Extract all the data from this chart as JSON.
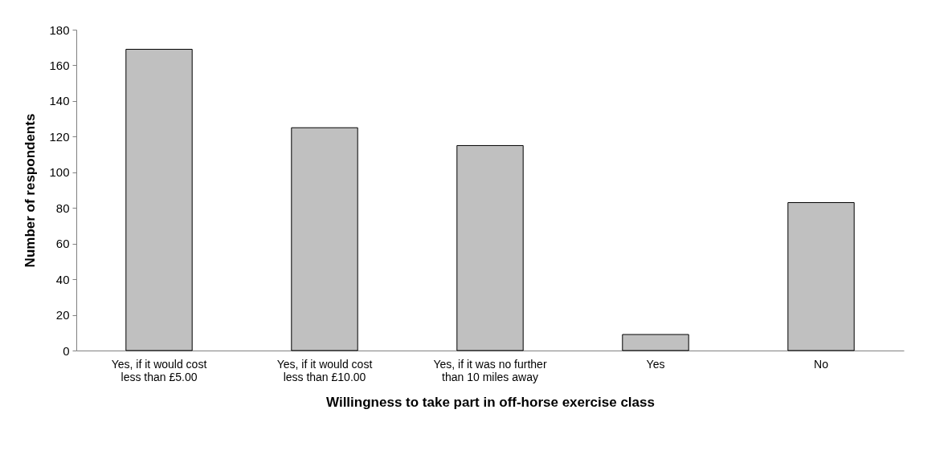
{
  "chart_data": {
    "type": "bar",
    "xlabel": "Willingness to take part in off-horse exercise class",
    "ylabel": "Number of respondents",
    "categories": [
      "Yes, if it would cost less than £5.00",
      "Yes, if it would cost less than £10.00",
      "Yes, if it was no further than 10 miles away",
      "Yes",
      "No"
    ],
    "values": [
      169,
      125,
      115,
      9,
      83
    ],
    "color": "#c0c0c0",
    "ylim": [
      0,
      180
    ],
    "yticks": [
      0,
      20,
      40,
      60,
      80,
      100,
      120,
      140,
      160,
      180
    ],
    "grid": false
  }
}
